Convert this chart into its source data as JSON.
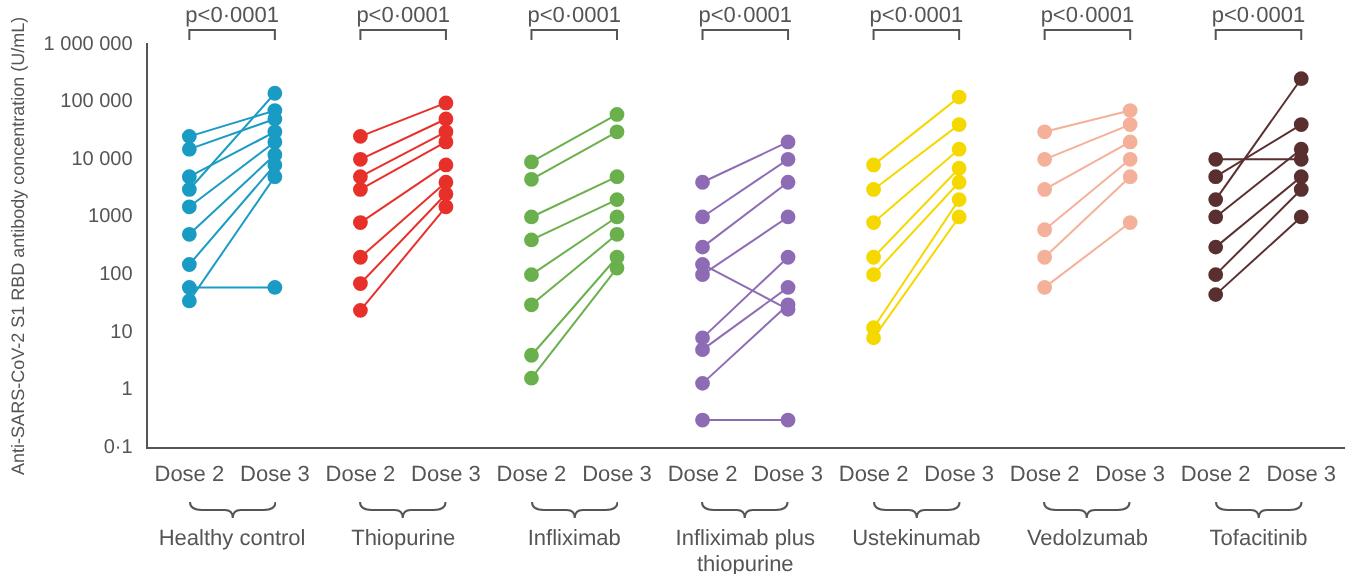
{
  "chart_data": {
    "type": "line",
    "ylabel": "Anti-SARS-CoV-2 S1 RBD antibody concentration (U/mL)",
    "categories": [
      "Dose 2",
      "Dose 3",
      "Dose 2",
      "Dose 3",
      "Dose 2",
      "Dose 3",
      "Dose 2",
      "Dose 3",
      "Dose 2",
      "Dose 3",
      "Dose 2",
      "Dose 3",
      "Dose 2",
      "Dose 3"
    ],
    "log": "y",
    "ylim": [
      0.1,
      1000000
    ],
    "yticks": [
      {
        "value": 0.1,
        "label": "0·1"
      },
      1,
      10,
      100,
      1000,
      {
        "value": 10000,
        "label": "10 000"
      },
      {
        "value": 100000,
        "label": "100 000"
      },
      {
        "value": 1000000,
        "label": "1 000 000"
      }
    ],
    "grid": false,
    "legend": false,
    "marker": "circle",
    "line_style": "solid",
    "annotations": [
      "p<0·0001",
      "p<0·0001",
      "p<0·0001",
      "p<0·0001",
      "p<0·0001",
      "p<0·0001",
      "p<0·0001",
      "Healthy control",
      "Thiopurine",
      "Infliximab",
      "Infliximab plus thiopurine",
      "Ustekinumab",
      "Vedolzumab",
      "Tofacitinib"
    ],
    "series": [
      {
        "color": "#1a9bc4",
        "values": [
          25000,
          70000,
          null,
          null,
          null,
          null,
          null,
          null,
          null,
          null,
          null,
          null,
          null,
          null
        ]
      },
      {
        "color": "#1a9bc4",
        "values": [
          3000,
          140000,
          null,
          null,
          null,
          null,
          null,
          null,
          null,
          null,
          null,
          null,
          null,
          null
        ]
      },
      {
        "color": "#1a9bc4",
        "values": [
          15000,
          50000,
          null,
          null,
          null,
          null,
          null,
          null,
          null,
          null,
          null,
          null,
          null,
          null
        ]
      },
      {
        "color": "#1a9bc4",
        "values": [
          5000,
          30000,
          null,
          null,
          null,
          null,
          null,
          null,
          null,
          null,
          null,
          null,
          null,
          null
        ]
      },
      {
        "color": "#1a9bc4",
        "values": [
          1500,
          20000,
          null,
          null,
          null,
          null,
          null,
          null,
          null,
          null,
          null,
          null,
          null,
          null
        ]
      },
      {
        "color": "#1a9bc4",
        "values": [
          500,
          12000,
          null,
          null,
          null,
          null,
          null,
          null,
          null,
          null,
          null,
          null,
          null,
          null
        ]
      },
      {
        "color": "#1a9bc4",
        "values": [
          150,
          8000,
          null,
          null,
          null,
          null,
          null,
          null,
          null,
          null,
          null,
          null,
          null,
          null
        ]
      },
      {
        "color": "#1a9bc4",
        "values": [
          35,
          5000,
          null,
          null,
          null,
          null,
          null,
          null,
          null,
          null,
          null,
          null,
          null,
          null
        ]
      },
      {
        "color": "#1a9bc4",
        "values": [
          60,
          60,
          null,
          null,
          null,
          null,
          null,
          null,
          null,
          null,
          null,
          null,
          null,
          null
        ]
      },
      {
        "color": "#e8302a",
        "values": [
          null,
          null,
          25000,
          95000,
          null,
          null,
          null,
          null,
          null,
          null,
          null,
          null,
          null,
          null
        ]
      },
      {
        "color": "#e8302a",
        "values": [
          null,
          null,
          10000,
          50000,
          null,
          null,
          null,
          null,
          null,
          null,
          null,
          null,
          null,
          null
        ]
      },
      {
        "color": "#e8302a",
        "values": [
          null,
          null,
          5000,
          30000,
          null,
          null,
          null,
          null,
          null,
          null,
          null,
          null,
          null,
          null
        ]
      },
      {
        "color": "#e8302a",
        "values": [
          null,
          null,
          3000,
          20000,
          null,
          null,
          null,
          null,
          null,
          null,
          null,
          null,
          null,
          null
        ]
      },
      {
        "color": "#e8302a",
        "values": [
          null,
          null,
          800,
          8000,
          null,
          null,
          null,
          null,
          null,
          null,
          null,
          null,
          null,
          null
        ]
      },
      {
        "color": "#e8302a",
        "values": [
          null,
          null,
          200,
          4000,
          null,
          null,
          null,
          null,
          null,
          null,
          null,
          null,
          null,
          null
        ]
      },
      {
        "color": "#e8302a",
        "values": [
          null,
          null,
          70,
          2500,
          null,
          null,
          null,
          null,
          null,
          null,
          null,
          null,
          null,
          null
        ]
      },
      {
        "color": "#e8302a",
        "values": [
          null,
          null,
          24,
          1500,
          null,
          null,
          null,
          null,
          null,
          null,
          null,
          null,
          null,
          null
        ]
      },
      {
        "color": "#6ab04c",
        "values": [
          null,
          null,
          null,
          null,
          9000,
          60000,
          null,
          null,
          null,
          null,
          null,
          null,
          null,
          null
        ]
      },
      {
        "color": "#6ab04c",
        "values": [
          null,
          null,
          null,
          null,
          4500,
          30000,
          null,
          null,
          null,
          null,
          null,
          null,
          null,
          null
        ]
      },
      {
        "color": "#6ab04c",
        "values": [
          null,
          null,
          null,
          null,
          1000,
          5000,
          null,
          null,
          null,
          null,
          null,
          null,
          null,
          null
        ]
      },
      {
        "color": "#6ab04c",
        "values": [
          null,
          null,
          null,
          null,
          400,
          2000,
          null,
          null,
          null,
          null,
          null,
          null,
          null,
          null
        ]
      },
      {
        "color": "#6ab04c",
        "values": [
          null,
          null,
          null,
          null,
          100,
          1000,
          null,
          null,
          null,
          null,
          null,
          null,
          null,
          null
        ]
      },
      {
        "color": "#6ab04c",
        "values": [
          null,
          null,
          null,
          null,
          30,
          500,
          null,
          null,
          null,
          null,
          null,
          null,
          null,
          null
        ]
      },
      {
        "color": "#6ab04c",
        "values": [
          null,
          null,
          null,
          null,
          4,
          200,
          null,
          null,
          null,
          null,
          null,
          null,
          null,
          null
        ]
      },
      {
        "color": "#6ab04c",
        "values": [
          null,
          null,
          null,
          null,
          1.6,
          130,
          null,
          null,
          null,
          null,
          null,
          null,
          null,
          null
        ]
      },
      {
        "color": "#8e6bb5",
        "values": [
          null,
          null,
          null,
          null,
          null,
          null,
          4000,
          20000,
          null,
          null,
          null,
          null,
          null,
          null
        ]
      },
      {
        "color": "#8e6bb5",
        "values": [
          null,
          null,
          null,
          null,
          null,
          null,
          1000,
          10000,
          null,
          null,
          null,
          null,
          null,
          null
        ]
      },
      {
        "color": "#8e6bb5",
        "values": [
          null,
          null,
          null,
          null,
          null,
          null,
          300,
          4000,
          null,
          null,
          null,
          null,
          null,
          null
        ]
      },
      {
        "color": "#8e6bb5",
        "values": [
          null,
          null,
          null,
          null,
          null,
          null,
          100,
          1000,
          null,
          null,
          null,
          null,
          null,
          null
        ]
      },
      {
        "color": "#8e6bb5",
        "values": [
          null,
          null,
          null,
          null,
          null,
          null,
          150,
          25,
          null,
          null,
          null,
          null,
          null,
          null
        ]
      },
      {
        "color": "#8e6bb5",
        "values": [
          null,
          null,
          null,
          null,
          null,
          null,
          8,
          200,
          null,
          null,
          null,
          null,
          null,
          null
        ]
      },
      {
        "color": "#8e6bb5",
        "values": [
          null,
          null,
          null,
          null,
          null,
          null,
          5,
          60,
          null,
          null,
          null,
          null,
          null,
          null
        ]
      },
      {
        "color": "#8e6bb5",
        "values": [
          null,
          null,
          null,
          null,
          null,
          null,
          1.3,
          30,
          null,
          null,
          null,
          null,
          null,
          null
        ]
      },
      {
        "color": "#8e6bb5",
        "values": [
          null,
          null,
          null,
          null,
          null,
          null,
          0.3,
          0.3,
          null,
          null,
          null,
          null,
          null,
          null
        ]
      },
      {
        "color": "#f5d800",
        "values": [
          null,
          null,
          null,
          null,
          null,
          null,
          null,
          null,
          8000,
          120000,
          null,
          null,
          null,
          null
        ]
      },
      {
        "color": "#f5d800",
        "values": [
          null,
          null,
          null,
          null,
          null,
          null,
          null,
          null,
          3000,
          40000,
          null,
          null,
          null,
          null
        ]
      },
      {
        "color": "#f5d800",
        "values": [
          null,
          null,
          null,
          null,
          null,
          null,
          null,
          null,
          800,
          15000,
          null,
          null,
          null,
          null
        ]
      },
      {
        "color": "#f5d800",
        "values": [
          null,
          null,
          null,
          null,
          null,
          null,
          null,
          null,
          200,
          7000,
          null,
          null,
          null,
          null
        ]
      },
      {
        "color": "#f5d800",
        "values": [
          null,
          null,
          null,
          null,
          null,
          null,
          null,
          null,
          100,
          4000,
          null,
          null,
          null,
          null
        ]
      },
      {
        "color": "#f5d800",
        "values": [
          null,
          null,
          null,
          null,
          null,
          null,
          null,
          null,
          12,
          2000,
          null,
          null,
          null,
          null
        ]
      },
      {
        "color": "#f5d800",
        "values": [
          null,
          null,
          null,
          null,
          null,
          null,
          null,
          null,
          8,
          1000,
          null,
          null,
          null,
          null
        ]
      },
      {
        "color": "#f5b09a",
        "values": [
          null,
          null,
          null,
          null,
          null,
          null,
          null,
          null,
          null,
          null,
          30000,
          70000,
          null,
          null
        ]
      },
      {
        "color": "#f5b09a",
        "values": [
          null,
          null,
          null,
          null,
          null,
          null,
          null,
          null,
          null,
          null,
          10000,
          40000,
          null,
          null
        ]
      },
      {
        "color": "#f5b09a",
        "values": [
          null,
          null,
          null,
          null,
          null,
          null,
          null,
          null,
          null,
          null,
          3000,
          20000,
          null,
          null
        ]
      },
      {
        "color": "#f5b09a",
        "values": [
          null,
          null,
          null,
          null,
          null,
          null,
          null,
          null,
          null,
          null,
          600,
          10000,
          null,
          null
        ]
      },
      {
        "color": "#f5b09a",
        "values": [
          null,
          null,
          null,
          null,
          null,
          null,
          null,
          null,
          null,
          null,
          200,
          5000,
          null,
          null
        ]
      },
      {
        "color": "#f5b09a",
        "values": [
          null,
          null,
          null,
          null,
          null,
          null,
          null,
          null,
          null,
          null,
          60,
          800,
          null,
          null
        ]
      },
      {
        "color": "#5a2f30",
        "values": [
          null,
          null,
          null,
          null,
          null,
          null,
          null,
          null,
          null,
          null,
          null,
          null,
          2000,
          250000
        ]
      },
      {
        "color": "#5a2f30",
        "values": [
          null,
          null,
          null,
          null,
          null,
          null,
          null,
          null,
          null,
          null,
          null,
          null,
          10000,
          10000
        ]
      },
      {
        "color": "#5a2f30",
        "values": [
          null,
          null,
          null,
          null,
          null,
          null,
          null,
          null,
          null,
          null,
          null,
          null,
          5000,
          40000
        ]
      },
      {
        "color": "#5a2f30",
        "values": [
          null,
          null,
          null,
          null,
          null,
          null,
          null,
          null,
          null,
          null,
          null,
          null,
          1000,
          15000
        ]
      },
      {
        "color": "#5a2f30",
        "values": [
          null,
          null,
          null,
          null,
          null,
          null,
          null,
          null,
          null,
          null,
          null,
          null,
          300,
          5000
        ]
      },
      {
        "color": "#5a2f30",
        "values": [
          null,
          null,
          null,
          null,
          null,
          null,
          null,
          null,
          null,
          null,
          null,
          null,
          100,
          3000
        ]
      },
      {
        "color": "#5a2f30",
        "values": [
          null,
          null,
          null,
          null,
          null,
          null,
          null,
          null,
          null,
          null,
          null,
          null,
          45,
          1000
        ]
      }
    ]
  }
}
